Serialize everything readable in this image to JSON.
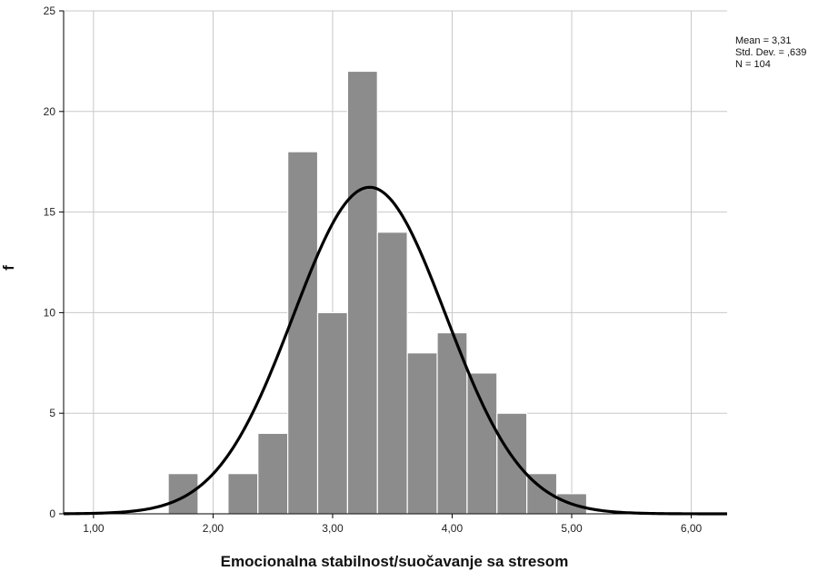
{
  "chart_data": {
    "type": "bar",
    "title": "",
    "xlabel": "Emocionalna stabilnost/suočavanje sa stresom",
    "ylabel": "f",
    "xlim": [
      0.75,
      6.3
    ],
    "ylim": [
      0,
      25
    ],
    "x_ticks": [
      1,
      2,
      3,
      4,
      5,
      6
    ],
    "x_tick_labels": [
      "1,00",
      "2,00",
      "3,00",
      "4,00",
      "5,00",
      "6,00"
    ],
    "y_ticks": [
      0,
      5,
      10,
      15,
      20,
      25
    ],
    "y_tick_labels": [
      "0",
      "5",
      "10",
      "15",
      "20",
      "25"
    ],
    "grid": true,
    "bin_width": 0.25,
    "bins": [
      {
        "start": 1.625,
        "end": 1.875,
        "count": 2
      },
      {
        "start": 1.875,
        "end": 2.125,
        "count": 0
      },
      {
        "start": 2.125,
        "end": 2.375,
        "count": 2
      },
      {
        "start": 2.375,
        "end": 2.625,
        "count": 4
      },
      {
        "start": 2.625,
        "end": 2.875,
        "count": 18
      },
      {
        "start": 2.875,
        "end": 3.125,
        "count": 10
      },
      {
        "start": 3.125,
        "end": 3.375,
        "count": 22
      },
      {
        "start": 3.375,
        "end": 3.625,
        "count": 14
      },
      {
        "start": 3.625,
        "end": 3.875,
        "count": 8
      },
      {
        "start": 3.875,
        "end": 4.125,
        "count": 9
      },
      {
        "start": 4.125,
        "end": 4.375,
        "count": 7
      },
      {
        "start": 4.375,
        "end": 4.625,
        "count": 5
      },
      {
        "start": 4.625,
        "end": 4.875,
        "count": 2
      },
      {
        "start": 4.875,
        "end": 5.125,
        "count": 1
      }
    ],
    "normal_curve": {
      "mean": 3.31,
      "sd": 0.639,
      "n": 104
    },
    "stats_lines": [
      "Mean = 3,31",
      "Std. Dev. = ,639",
      "N = 104"
    ],
    "colors": {
      "bar": "#8c8c8c",
      "bar_edge": "#ffffff",
      "curve": "#000000",
      "grid": "#c8c8c8"
    }
  }
}
